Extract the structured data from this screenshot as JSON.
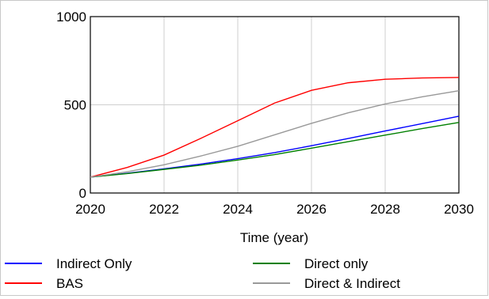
{
  "chart_data": {
    "type": "line",
    "title": "",
    "xlabel": "Time (year)",
    "ylabel": "",
    "xlim": [
      2020,
      2030
    ],
    "ylim": [
      0,
      1000
    ],
    "xticks": [
      "2020",
      "2022",
      "2024",
      "2026",
      "2028",
      "2030"
    ],
    "yticks": [
      "0",
      "500",
      "1000"
    ],
    "grid": true,
    "legend_position": "bottom",
    "x": [
      2020,
      2021,
      2022,
      2023,
      2024,
      2025,
      2026,
      2027,
      2028,
      2029,
      2030
    ],
    "series": [
      {
        "name": "Indirect Only",
        "color": "#0000ff",
        "values": [
          90,
          112,
          137,
          164,
          195,
          229,
          268,
          309,
          352,
          393,
          435
        ]
      },
      {
        "name": "Direct only",
        "color": "#008000",
        "values": [
          90,
          110,
          134,
          158,
          187,
          218,
          254,
          291,
          328,
          365,
          400
        ]
      },
      {
        "name": "BAS",
        "color": "#ff0000",
        "values": [
          90,
          145,
          215,
          310,
          410,
          510,
          582,
          625,
          645,
          652,
          655
        ]
      },
      {
        "name": "Direct & Indirect",
        "color": "#999999",
        "values": [
          90,
          120,
          160,
          210,
          265,
          330,
          395,
          455,
          505,
          545,
          580
        ]
      }
    ]
  }
}
